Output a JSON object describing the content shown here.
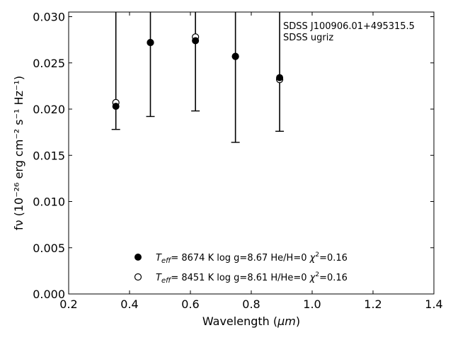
{
  "chart_data": {
    "type": "scatter",
    "xlabel_pre": "Wavelength (",
    "xlabel_unit": "μm",
    "xlabel_post": ")",
    "ylabel": "fν (10⁻²⁶ erg cm⁻² s⁻¹ Hz⁻¹)",
    "xlim": [
      0.2,
      1.4
    ],
    "ylim": [
      0.0,
      0.0305
    ],
    "x_ticks": [
      0.2,
      0.4,
      0.6,
      0.8,
      1.0,
      1.2,
      1.4
    ],
    "x_tick_labels": [
      "0.2",
      "0.4",
      "0.6",
      "0.8",
      "1.0",
      "1.2",
      "1.4"
    ],
    "y_ticks": [
      0.0,
      0.005,
      0.01,
      0.015,
      0.02,
      0.025,
      0.03
    ],
    "y_tick_labels": [
      "0.000",
      "0.005",
      "0.010",
      "0.015",
      "0.020",
      "0.025",
      "0.030"
    ],
    "grid": false,
    "ticks_inside": true,
    "annotation": [
      "SDSS J100906.01+495315.5",
      "SDSS ugriz"
    ],
    "annotation_position": "top-right",
    "observed": {
      "x": [
        0.3551,
        0.4686,
        0.6166,
        0.748,
        0.8932
      ],
      "y": [
        0.0305,
        0.0305,
        0.0305,
        0.0305,
        0.0305
      ],
      "yerr_low": [
        0.0178,
        0.0192,
        0.0198,
        0.0164,
        0.0176
      ]
    },
    "series": [
      {
        "name": "He/H=0",
        "marker": "filled-circle",
        "legend": {
          "teff_label": "T",
          "teff_sub": "eff",
          "text": "=  8674 K  log g=8.67  He/H=0  ",
          "chi": "χ",
          "chi_sup": "2",
          "chi_val": "=0.16"
        },
        "x": [
          0.3551,
          0.4686,
          0.6166,
          0.748,
          0.8932
        ],
        "y": [
          0.0203,
          0.0272,
          0.0274,
          0.0257,
          0.0234
        ]
      },
      {
        "name": "H/He=0",
        "marker": "open-circle",
        "legend": {
          "teff_label": "T",
          "teff_sub": "eff",
          "text": "=  8451 K  log g=8.61  H/He=0  ",
          "chi": "χ",
          "chi_sup": "2",
          "chi_val": "=0.16"
        },
        "x": [
          0.3551,
          0.4686,
          0.6166,
          0.748,
          0.8932
        ],
        "y": [
          0.0207,
          0.0272,
          0.0278,
          0.0257,
          0.0232
        ]
      }
    ],
    "legend_position": "lower-center",
    "colors": {
      "marker": "#000000",
      "background": "#ffffff"
    }
  }
}
